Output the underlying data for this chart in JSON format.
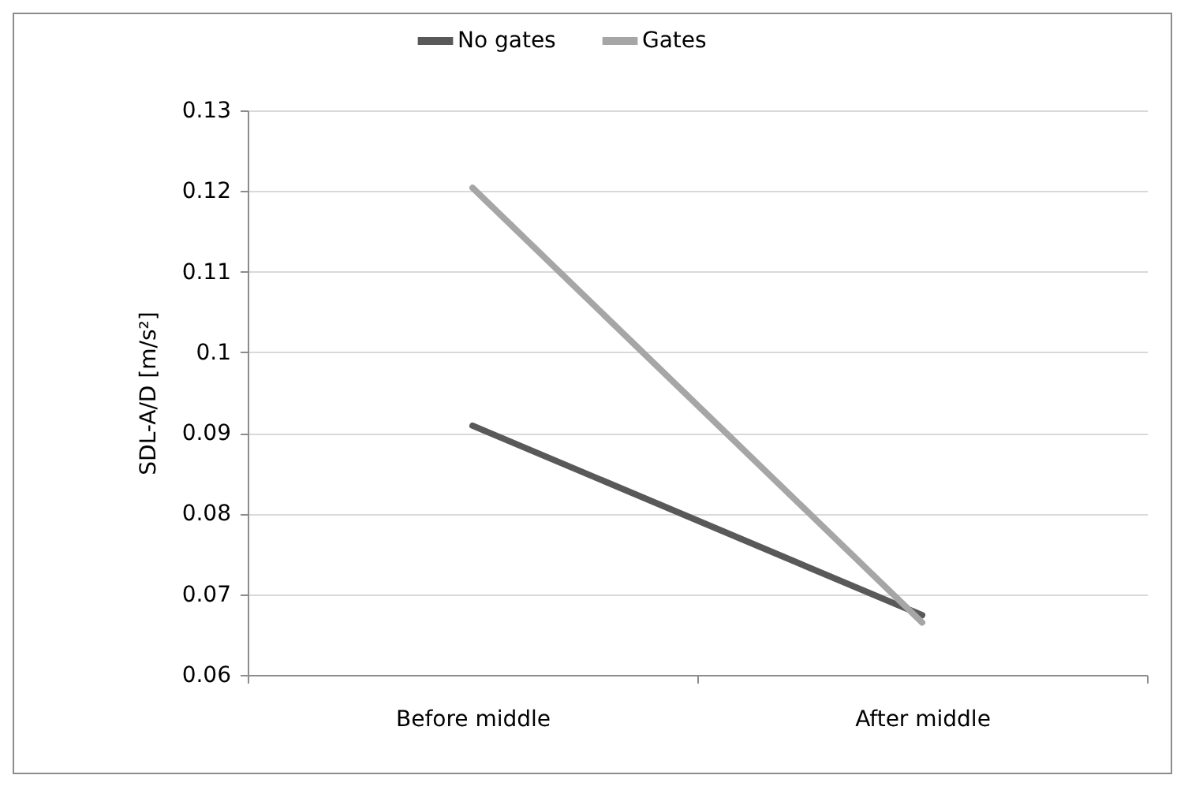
{
  "chart_data": {
    "type": "line",
    "ylabel": "SDL-A/D [m/s²]",
    "categories": [
      "Before middle",
      "After middle"
    ],
    "series": [
      {
        "name": "No gates",
        "color": "#595959",
        "values": [
          0.0909,
          0.0674
        ]
      },
      {
        "name": "Gates",
        "color": "#a6a6a6",
        "values": [
          0.1204,
          0.0665
        ]
      }
    ],
    "ylim": [
      0.06,
      0.13
    ],
    "yticks": [
      0.06,
      0.07,
      0.08,
      0.09,
      0.1,
      0.11,
      0.12,
      0.13
    ],
    "grid": "y",
    "legend": "top",
    "marker": "none",
    "line_style": "solid"
  }
}
